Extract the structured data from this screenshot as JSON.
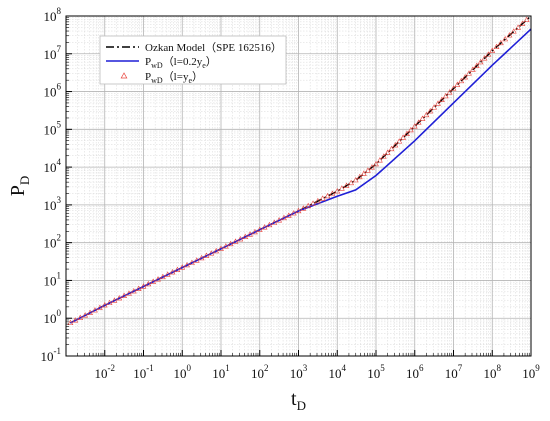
{
  "chart_data": {
    "type": "line",
    "title": "",
    "xlabel": {
      "main": "t",
      "sub": "D"
    },
    "ylabel": {
      "main": "P",
      "sub": "D"
    },
    "xscale": "log",
    "yscale": "log",
    "xlim": [
      0.001,
      1000000000
    ],
    "ylim": [
      0.1,
      100000000
    ],
    "grid": true,
    "legend_position": "top-left",
    "x_tick_exponents": [
      "-2",
      "-1",
      "0",
      "1",
      "2",
      "3",
      "4",
      "5",
      "6",
      "7",
      "8",
      "9"
    ],
    "y_tick_exponents": [
      "-1",
      "0",
      "1",
      "2",
      "3",
      "4",
      "5",
      "6",
      "7",
      "8"
    ],
    "tick_base": "10",
    "series": [
      {
        "name": "Ozkan Model（SPE 162516）",
        "style": "dash-dot",
        "color": "#000000",
        "x": [
          0.0013,
          0.01,
          0.1,
          1,
          10,
          100,
          1000,
          10000,
          30000,
          100000,
          1000000,
          10000000,
          100000000,
          1000000000
        ],
        "y": [
          0.75,
          2.2,
          6.9,
          22,
          69,
          220,
          690,
          2300,
          4500,
          12000,
          120000,
          1200000,
          12000000,
          100000000
        ]
      },
      {
        "name_main": "P",
        "name_sub": "wD",
        "name_suffix_pre": "（l=0.2y",
        "name_suffix_sub": "e",
        "name_suffix_post": "）",
        "style": "solid",
        "color": "#1f1fd6",
        "x": [
          0.0013,
          0.01,
          0.1,
          1,
          10,
          100,
          1000,
          10000,
          30000,
          100000,
          1000000,
          10000000,
          100000000,
          1000000000
        ],
        "y": [
          0.75,
          2.2,
          6.9,
          22,
          69,
          220,
          690,
          1700,
          2500,
          6000,
          50000,
          500000,
          5000000,
          45000000
        ]
      },
      {
        "name_main": "P",
        "name_sub": "wD",
        "name_suffix_pre": "（l=y",
        "name_suffix_sub": "e",
        "name_suffix_post": "）",
        "style": "markers-triangle",
        "color": "#e8413a",
        "x": [
          0.0013,
          0.01,
          0.1,
          1,
          10,
          100,
          1000,
          10000,
          30000,
          100000,
          1000000,
          10000000,
          100000000,
          1000000000
        ],
        "y": [
          0.75,
          2.2,
          6.9,
          22,
          69,
          220,
          690,
          2300,
          4500,
          12000,
          120000,
          1200000,
          12000000,
          100000000
        ]
      }
    ]
  }
}
